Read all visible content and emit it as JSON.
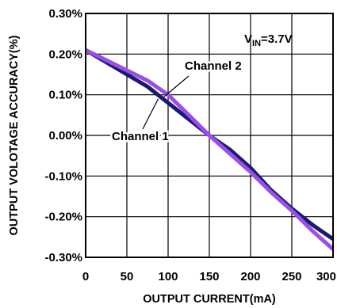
{
  "chart_data": {
    "type": "line",
    "xlabel": "OUTPUT CURRENT(mA)",
    "ylabel": "OUTPUT  VOLOTAGE ACCURACY(%)",
    "xlim": [
      0,
      300
    ],
    "ylim": [
      -0.3,
      0.3
    ],
    "x_ticks": [
      "0",
      "50",
      "100",
      "150",
      "200",
      "250",
      "300"
    ],
    "y_ticks": [
      "0.30%",
      "0.20%",
      "0.10%",
      "0.00%",
      "-0.10%",
      "-0.20%",
      "-0.30%"
    ],
    "grid": true,
    "annotation": {
      "prefix": "V",
      "subscript": "IN",
      "suffix": "=3.7V"
    },
    "series": [
      {
        "name": "Channel 1",
        "color": "#1a1a6e",
        "x": [
          0,
          25,
          50,
          75,
          100,
          125,
          150,
          175,
          200,
          225,
          250,
          275,
          300
        ],
        "y": [
          0.21,
          0.18,
          0.15,
          0.12,
          0.08,
          0.04,
          0.0,
          -0.035,
          -0.08,
          -0.135,
          -0.18,
          -0.22,
          -0.255
        ]
      },
      {
        "name": "Channel 2",
        "color": "#9b4fe8",
        "x": [
          0,
          25,
          50,
          75,
          100,
          125,
          150,
          175,
          200,
          225,
          250,
          275,
          300
        ],
        "y": [
          0.21,
          0.185,
          0.16,
          0.135,
          0.1,
          0.05,
          0.0,
          -0.045,
          -0.09,
          -0.14,
          -0.185,
          -0.235,
          -0.28
        ]
      }
    ],
    "labels": [
      {
        "text": "Channel 2",
        "series": 1
      },
      {
        "text": "Channel 1",
        "series": 0
      }
    ]
  }
}
